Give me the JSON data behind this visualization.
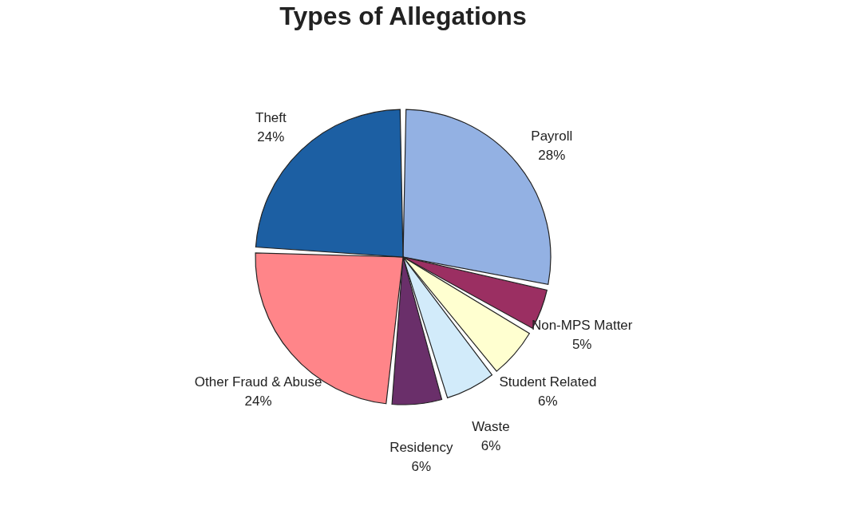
{
  "chart_data": {
    "type": "pie",
    "title": "Types of Allegations",
    "categories": [
      "Payroll",
      "Non-MPS Matter",
      "Student Related",
      "Waste",
      "Residency",
      "Other Fraud & Abuse",
      "Theft"
    ],
    "values": [
      28,
      5,
      6,
      6,
      6,
      24,
      24
    ],
    "value_labels": [
      "28%",
      "5%",
      "6%",
      "6%",
      "6%",
      "24%",
      "24%"
    ],
    "colors": [
      "#93b1e3",
      "#9b2f62",
      "#ffffd0",
      "#d2ebfa",
      "#6a2f6a",
      "#ff8589",
      "#1c5fa3"
    ],
    "legend": false
  }
}
